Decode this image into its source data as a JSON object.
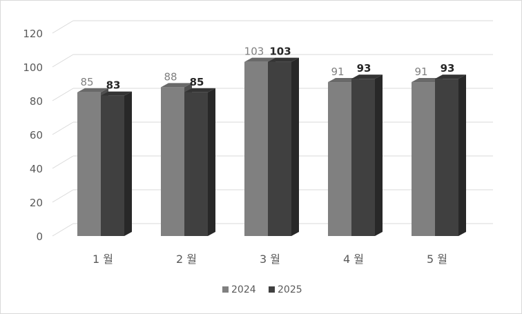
{
  "chart_data": {
    "type": "bar",
    "categories": [
      "1 월",
      "2 월",
      "3 월",
      "4 월",
      "5 월"
    ],
    "series": [
      {
        "name": "2024",
        "values": [
          85,
          88,
          103,
          91,
          91
        ],
        "color": "#808080"
      },
      {
        "name": "2025",
        "values": [
          83,
          85,
          103,
          93,
          93
        ],
        "color": "#404040"
      }
    ],
    "y_ticks": [
      "0",
      "20",
      "40",
      "60",
      "80",
      "100",
      "120"
    ],
    "ylim": [
      0,
      120
    ],
    "grid": true,
    "legend_position": "bottom",
    "style": "3d-clustered-column"
  }
}
